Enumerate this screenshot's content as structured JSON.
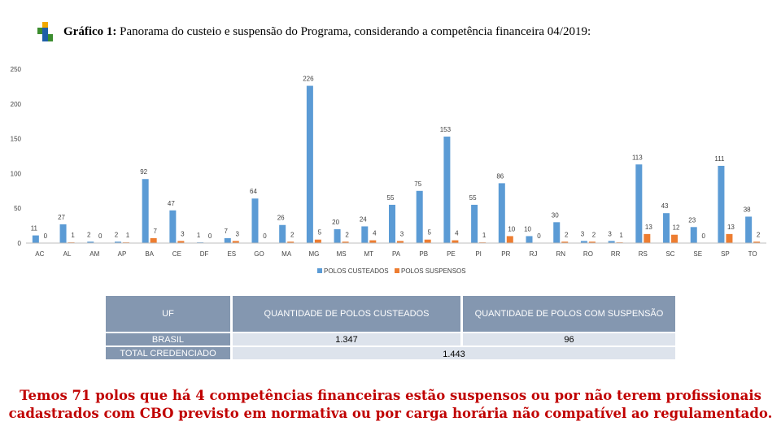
{
  "header": {
    "title_bold": "Gráfico 1:",
    "title_rest": " Panorama do custeio e suspensão do Programa, considerando a competência financeira 04/2019:"
  },
  "chart_data": {
    "type": "bar",
    "categories": [
      "AC",
      "AL",
      "AM",
      "AP",
      "BA",
      "CE",
      "DF",
      "ES",
      "GO",
      "MA",
      "MG",
      "MS",
      "MT",
      "PA",
      "PB",
      "PE",
      "PI",
      "PR",
      "RJ",
      "RN",
      "RO",
      "RR",
      "RS",
      "SC",
      "SE",
      "SP",
      "TO"
    ],
    "series": [
      {
        "name": "POLOS CUSTEADOS",
        "color": "#5b9bd5",
        "values": [
          11,
          27,
          2,
          2,
          92,
          47,
          1,
          7,
          64,
          26,
          226,
          20,
          24,
          55,
          75,
          153,
          55,
          86,
          10,
          30,
          3,
          3,
          113,
          43,
          23,
          111,
          38
        ]
      },
      {
        "name": "POLOS SUSPENSOS",
        "color": "#ed7d31",
        "values": [
          0,
          1,
          0,
          1,
          7,
          3,
          0,
          3,
          0,
          2,
          5,
          2,
          4,
          3,
          5,
          4,
          1,
          10,
          0,
          2,
          2,
          1,
          13,
          12,
          0,
          13,
          2
        ]
      }
    ],
    "ylim": [
      0,
      250
    ],
    "yticks": [
      0,
      50,
      100,
      150,
      200,
      250
    ],
    "grid": false,
    "legend": "bottom"
  },
  "table": {
    "headers": [
      "UF",
      "QUANTIDADE DE POLOS CUSTEADOS",
      "QUANTIDADE DE POLOS COM SUSPENSÃO"
    ],
    "row1_label": "BRASIL",
    "row1_custeados": "1.347",
    "row1_suspensos": "96",
    "row2_label": "TOTAL CREDENCIADO",
    "row2_total": "1.443"
  },
  "footnote": "Temos 71 polos que há 4 competências financeiras estão suspensos ou por não terem profissionais cadastrados com CBO previsto em normativa ou por carga horária não compatível ao regulamentado."
}
